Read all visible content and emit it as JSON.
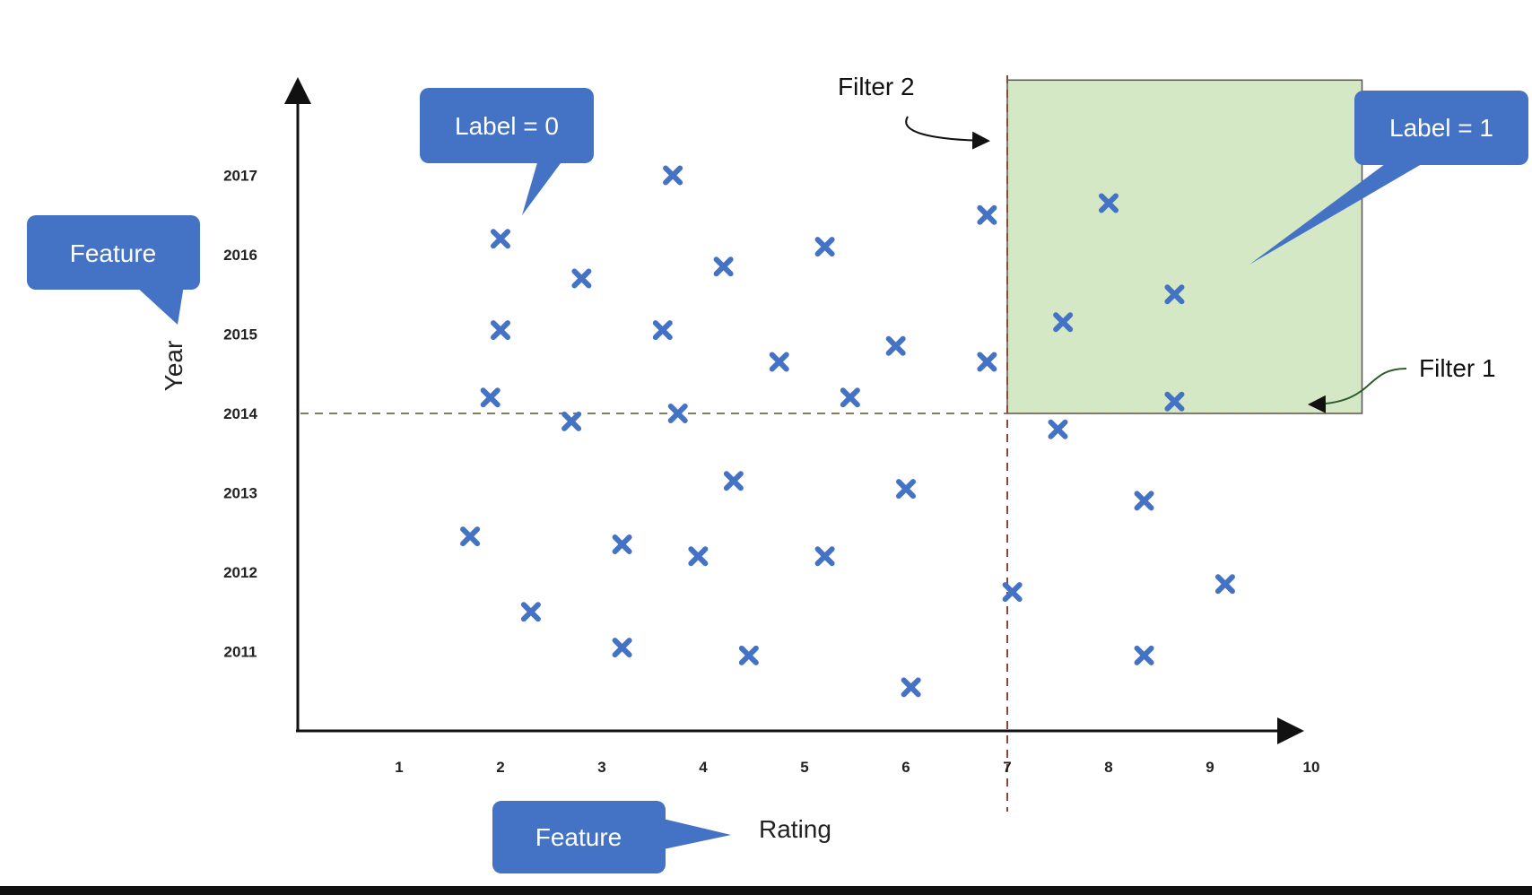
{
  "chart_data": {
    "type": "scatter",
    "xlabel": "Rating",
    "ylabel": "Year",
    "x_ticks": [
      1,
      2,
      3,
      4,
      5,
      6,
      7,
      8,
      9,
      10
    ],
    "y_ticks": [
      2011,
      2012,
      2013,
      2014,
      2015,
      2016,
      2017
    ],
    "xlim": [
      0,
      10
    ],
    "ylim": [
      2010,
      2018
    ],
    "grid": false,
    "marker": "x",
    "marker_color": "#4472C4",
    "points": [
      {
        "x": 2.0,
        "y": 2016.2
      },
      {
        "x": 2.0,
        "y": 2015.05
      },
      {
        "x": 1.9,
        "y": 2014.2
      },
      {
        "x": 2.8,
        "y": 2015.7
      },
      {
        "x": 2.7,
        "y": 2013.9
      },
      {
        "x": 3.7,
        "y": 2017.0
      },
      {
        "x": 3.6,
        "y": 2015.05
      },
      {
        "x": 3.75,
        "y": 2014.0
      },
      {
        "x": 4.2,
        "y": 2015.85
      },
      {
        "x": 5.2,
        "y": 2016.1
      },
      {
        "x": 4.75,
        "y": 2014.65
      },
      {
        "x": 5.45,
        "y": 2014.2
      },
      {
        "x": 5.9,
        "y": 2014.85
      },
      {
        "x": 6.8,
        "y": 2016.5
      },
      {
        "x": 6.8,
        "y": 2014.65
      },
      {
        "x": 4.3,
        "y": 2013.15
      },
      {
        "x": 6.0,
        "y": 2013.05
      },
      {
        "x": 1.7,
        "y": 2012.45
      },
      {
        "x": 3.2,
        "y": 2012.35
      },
      {
        "x": 3.95,
        "y": 2012.2
      },
      {
        "x": 5.2,
        "y": 2012.2
      },
      {
        "x": 2.3,
        "y": 2011.5
      },
      {
        "x": 3.2,
        "y": 2011.05
      },
      {
        "x": 4.45,
        "y": 2010.95
      },
      {
        "x": 6.05,
        "y": 2010.55
      },
      {
        "x": 7.05,
        "y": 2011.75
      },
      {
        "x": 7.5,
        "y": 2013.8
      },
      {
        "x": 8.35,
        "y": 2012.9
      },
      {
        "x": 9.15,
        "y": 2011.85
      },
      {
        "x": 8.35,
        "y": 2010.95
      },
      {
        "x": 8.0,
        "y": 2016.65
      },
      {
        "x": 7.55,
        "y": 2015.15
      },
      {
        "x": 8.65,
        "y": 2015.5
      },
      {
        "x": 8.65,
        "y": 2014.15
      }
    ],
    "region": {
      "x_from": 7,
      "x_to": 10.5,
      "y_from": 2014,
      "y_to": 2018.2,
      "color": "#D5E8C5"
    },
    "filters": [
      {
        "label": "Filter 1",
        "axis": "y",
        "value": 2014
      },
      {
        "label": "Filter 2",
        "axis": "x",
        "value": 7
      }
    ],
    "callouts": [
      {
        "text": "Label = 0"
      },
      {
        "text": "Label = 1"
      },
      {
        "text": "Feature"
      },
      {
        "text": "Feature"
      }
    ]
  }
}
